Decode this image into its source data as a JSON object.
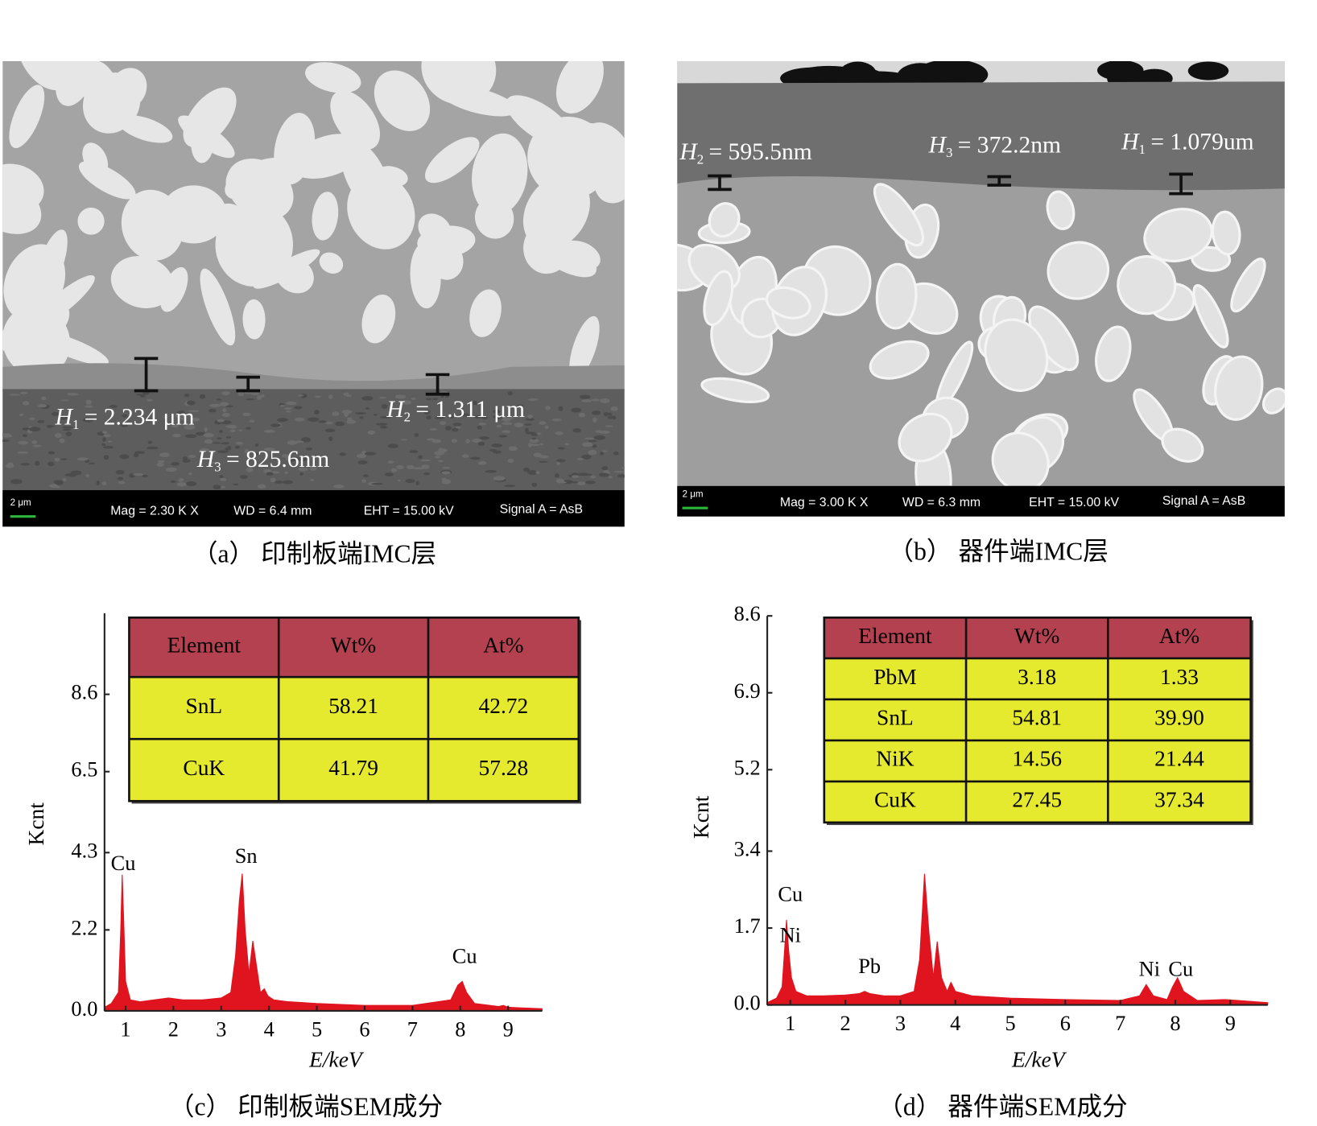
{
  "images": [
    {
      "caption": "（a） 印制板端IMC层",
      "thickness": [
        {
          "name": "H",
          "index": "1",
          "text": "= 2.234 μm"
        },
        {
          "name": "H",
          "index": "3",
          "text": "= 825.6nm"
        },
        {
          "name": "H",
          "index": "2",
          "text": "= 1.311 μm"
        }
      ],
      "info": {
        "scale": "2 μm",
        "mag": "Mag =  2.30 K X",
        "wd": "WD = 6.4 mm",
        "eht": "EHT = 15.00 kV",
        "signal": "Signal A = AsB"
      }
    },
    {
      "caption": "（b） 器件端IMC层",
      "thickness": [
        {
          "name": "H",
          "index": "2",
          "text": "= 595.5nm"
        },
        {
          "name": "H",
          "index": "3",
          "text": "= 372.2nm"
        },
        {
          "name": "H",
          "index": "1",
          "text": "= 1.079um"
        }
      ],
      "info": {
        "scale": "2 μm",
        "mag": "Mag =  3.00 K X",
        "wd": "WD = 6.3 mm",
        "eht": "EHT = 15.00 kV",
        "signal": "Signal A = AsB"
      }
    }
  ],
  "chart_data": [
    {
      "type": "area",
      "caption": "（c） 印制板端SEM成分",
      "x_label": "E/keV",
      "y_label": "Kcnt",
      "xlim": [
        0.56,
        9.71
      ],
      "xticks": [
        1,
        2,
        3,
        4,
        5,
        6,
        7,
        8,
        9
      ],
      "ylim": [
        0,
        10.8
      ],
      "yticks": [
        {
          "value": 0,
          "label": "0.0"
        },
        2.2,
        4.3,
        6.5,
        8.6
      ],
      "series": [
        {
          "color": "#e0141e",
          "x": [
            0.56,
            0.7,
            0.85,
            0.9,
            0.93,
            0.96,
            1.0,
            1.1,
            1.3,
            1.6,
            1.9,
            2.2,
            2.6,
            3.0,
            3.2,
            3.3,
            3.38,
            3.44,
            3.5,
            3.58,
            3.66,
            3.74,
            3.82,
            3.9,
            3.98,
            4.1,
            4.4,
            5,
            6,
            7,
            7.8,
            7.95,
            8.04,
            8.13,
            8.3,
            8.8,
            8.9,
            9.0,
            9.3,
            9.71
          ],
          "values": [
            0.1,
            0.2,
            0.5,
            2.2,
            3.7,
            2.5,
            0.8,
            0.3,
            0.25,
            0.3,
            0.35,
            0.3,
            0.3,
            0.35,
            0.5,
            1.5,
            3.0,
            3.73,
            2.2,
            1.0,
            1.9,
            1.2,
            0.5,
            0.6,
            0.4,
            0.3,
            0.25,
            0.2,
            0.15,
            0.15,
            0.3,
            0.7,
            0.8,
            0.5,
            0.2,
            0.12,
            0.15,
            0.1,
            0.08,
            0.06
          ]
        }
      ],
      "annotations": [
        {
          "text": "Cu",
          "x": 0.95,
          "y": 3.96
        },
        {
          "text": "Sn",
          "x": 3.52,
          "y": 4.15
        },
        {
          "text": "Cu",
          "x": 8.09,
          "y": 1.43
        }
      ],
      "table": {
        "header": [
          "Element",
          "Wt%",
          "At%"
        ],
        "rows": [
          [
            "SnL",
            "58.21",
            "42.72"
          ],
          [
            "CuK",
            "41.79",
            "57.28"
          ]
        ]
      }
    },
    {
      "type": "area",
      "caption": "（d） 器件端SEM成分",
      "x_label": "E/keV",
      "y_label": "Kcnt",
      "xlim": [
        0.58,
        9.68
      ],
      "xticks": [
        1,
        2,
        3,
        4,
        5,
        6,
        7,
        8,
        9
      ],
      "ylim": [
        0,
        8.6
      ],
      "yticks": [
        {
          "value": 0,
          "label": "0.0"
        },
        1.7,
        3.4,
        5.2,
        6.9,
        8.6
      ],
      "series": [
        {
          "color": "#e0141e",
          "x": [
            0.58,
            0.75,
            0.85,
            0.9,
            0.93,
            0.97,
            1.02,
            1.1,
            1.3,
            1.6,
            2.0,
            2.25,
            2.35,
            2.45,
            2.7,
            3.0,
            3.25,
            3.35,
            3.44,
            3.52,
            3.6,
            3.67,
            3.75,
            3.85,
            3.92,
            4.0,
            4.3,
            5,
            6,
            7,
            7.35,
            7.47,
            7.6,
            7.85,
            7.95,
            8.04,
            8.15,
            8.4,
            8.9,
            9.68
          ],
          "values": [
            0.05,
            0.15,
            0.4,
            1.3,
            1.88,
            1.2,
            0.6,
            0.3,
            0.2,
            0.2,
            0.22,
            0.25,
            0.3,
            0.25,
            0.2,
            0.2,
            0.3,
            1.0,
            2.9,
            1.6,
            0.6,
            1.4,
            0.6,
            0.3,
            0.5,
            0.3,
            0.2,
            0.15,
            0.12,
            0.1,
            0.2,
            0.45,
            0.2,
            0.12,
            0.4,
            0.6,
            0.3,
            0.1,
            0.12,
            0.05
          ]
        }
      ],
      "annotations": [
        {
          "text": "Cu",
          "x": 1.0,
          "y": 2.4
        },
        {
          "text": "Ni",
          "x": 1.0,
          "y": 1.5
        },
        {
          "text": "Pb",
          "x": 2.44,
          "y": 0.81
        },
        {
          "text": "Ni",
          "x": 7.53,
          "y": 0.75
        },
        {
          "text": "Cu",
          "x": 8.1,
          "y": 0.75
        }
      ],
      "table": {
        "header": [
          "Element",
          "Wt%",
          "At%"
        ],
        "rows": [
          [
            "PbM",
            "3.18",
            "1.33"
          ],
          [
            "SnL",
            "54.81",
            "39.90"
          ],
          [
            "NiK",
            "14.56",
            "21.44"
          ],
          [
            "CuK",
            "27.45",
            "37.34"
          ]
        ]
      }
    }
  ]
}
